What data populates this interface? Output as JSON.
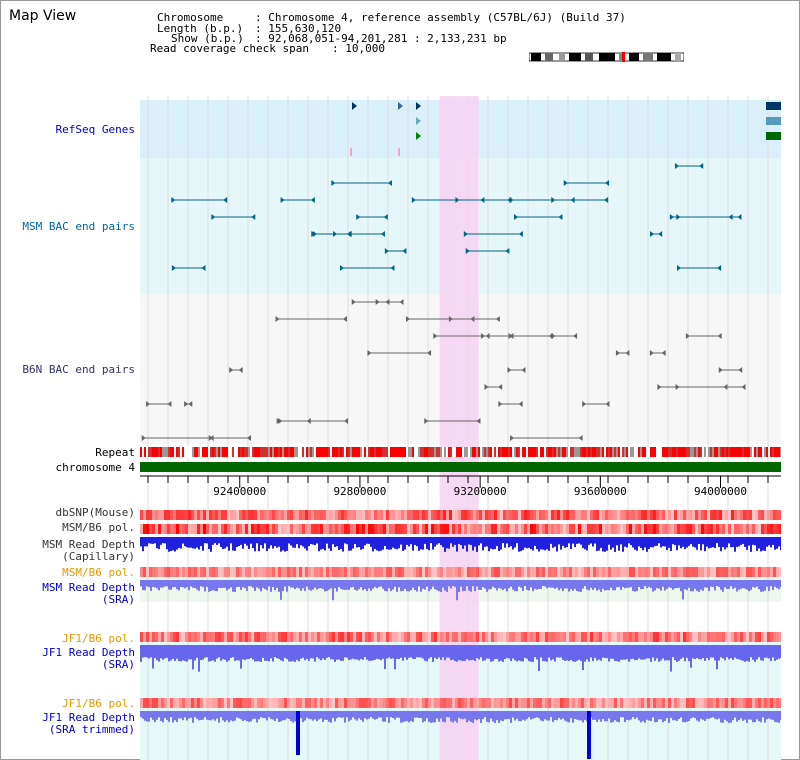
{
  "app": {
    "title": "Map View"
  },
  "header": {
    "chromosome_key": "Chromosome",
    "chromosome_val": ": Chromosome 4, reference assembly (C57BL/6J) (Build 37)",
    "length_key": "Length (b.p.)",
    "length_val": ": 155,630,120",
    "show_key": "Show (b.p.)",
    "show_val": ": 92,068,051-94,201,281 : 2,133,231 bp",
    "coverage_key": "Read coverage check span",
    "coverage_val": ": 10,000"
  },
  "tracks": {
    "refseq": "RefSeq Genes",
    "msm_bac": "MSM BAC end pairs",
    "b6n_bac": "B6N BAC end pairs",
    "repeat": "Repeat",
    "chromosome": "chromosome 4",
    "dbsnp": "dbSNP(Mouse)",
    "msm_b6_pol": "MSM/B6 pol.",
    "msm_read_depth_cap_1": "MSM Read Depth",
    "msm_read_depth_cap_2": "(Capillary)",
    "msm_b6_pol_2": "MSM/B6 pol.",
    "msm_read_depth_sra_1": "MSM Read Depth",
    "msm_read_depth_sra_2": "(SRA)",
    "jf1_b6_pol": "JF1/B6 pol.",
    "jf1_read_depth_sra_1": "JF1 Read Depth",
    "jf1_read_depth_sra_2": "(SRA)",
    "jf1_b6_pol_2": "JF1/B6 pol.",
    "jf1_read_depth_trim_1": "JF1 Read Depth",
    "jf1_read_depth_trim_2": "(SRA trimmed)"
  },
  "axis": {
    "ticks": [
      "92400000",
      "92800000",
      "93200000",
      "93600000",
      "94000000"
    ],
    "tick_values": [
      92400000,
      92800000,
      93200000,
      93600000,
      94000000
    ],
    "start": 92068051,
    "end": 94201281
  },
  "highlight": {
    "start": 93065000,
    "end": 93195000
  },
  "colors": {
    "label_blue": "#0000cc",
    "label_teal": "#006699",
    "label_gray": "#333366",
    "label_orange": "#e69900",
    "chromosome_green": "#006600",
    "highlight_pink": "#f7d2f2",
    "refseq_bg": "#d9f0fb",
    "msm_bg": "#e6f7f9",
    "b6n_bg": "#f7f7f7",
    "depth_blue": "#2020e0",
    "sra_bg": "#eef8ee",
    "jf1_bg": "#e5f9f9"
  },
  "icons": {
    "chromosome_ideogram": "chromosome-ideogram-icon"
  }
}
